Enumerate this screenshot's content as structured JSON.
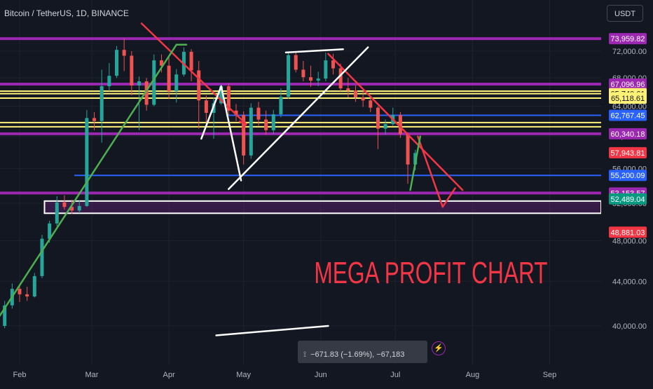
{
  "header": {
    "symbol_title": "Bitcoin / TetherUS, 1D, BINANCE",
    "currency": "USDT"
  },
  "annotation_text": "MEGA PROFIT CHART",
  "measure_tooltip": "−671.83 (−1.69%), −67,183",
  "colors": {
    "background": "#131722",
    "up_candle": "#26a69a",
    "down_candle": "#ef5350",
    "purple_level": "#9c27b0",
    "yellow_level": "#fff176",
    "blue_level": "#2962ff",
    "trend_red": "#f23645",
    "trend_green": "#4caf50",
    "annotation_red": "#f23645"
  },
  "chart_data": {
    "type": "candlestick",
    "symbol": "Bitcoin / TetherUS",
    "interval": "1D",
    "exchange": "BINANCE",
    "y_axis": {
      "scale": "log",
      "range": [
        37800,
        77000
      ],
      "tick_values": [
        40000,
        44000,
        48000,
        52000,
        56000,
        60000,
        64000,
        68000,
        72000
      ],
      "tick_labels": [
        "40,000.00",
        "44,000.00",
        "48,000.00",
        "52,000.00",
        "56,000.00",
        "60,000.00",
        "64,000.00",
        "68,000.00",
        "72,000.00"
      ]
    },
    "x_axis": {
      "tick_labels": [
        {
          "label": "Feb",
          "date": "2024-02-01"
        },
        {
          "label": "Mar",
          "date": "2024-03-01"
        },
        {
          "label": "Apr",
          "date": "2024-04-01"
        },
        {
          "label": "May",
          "date": "2024-05-01"
        },
        {
          "label": "Jun",
          "date": "2024-06-01"
        },
        {
          "label": "Jul",
          "date": "2024-07-01"
        },
        {
          "label": "Aug",
          "date": "2024-08-01"
        },
        {
          "label": "Sep",
          "date": "2024-09-01"
        }
      ]
    },
    "price_labels": [
      {
        "price": 73959.82,
        "label": "73,959.82",
        "color": "#9c27b0"
      },
      {
        "price": 67096.96,
        "label": "67,096.96",
        "color": "#9c27b0"
      },
      {
        "price": 65740.61,
        "label": "65,740.61",
        "color": "#fff176"
      },
      {
        "price": 65118.61,
        "label": "65,118.61",
        "color": "#fff176"
      },
      {
        "price": 62767.45,
        "label": "62,767.45",
        "color": "#2962ff"
      },
      {
        "price": 60340.18,
        "label": "60,340.18",
        "color": "#9c27b0"
      },
      {
        "price": 57943.81,
        "label": "57,943.81",
        "color": "#f23645"
      },
      {
        "price": 55200.09,
        "label": "55,200.09",
        "color": "#2962ff"
      },
      {
        "price": 53153.57,
        "label": "53,153.57",
        "color": "#9c27b0"
      },
      {
        "price": 52489.04,
        "label": "52,489.04",
        "color": "#089981"
      },
      {
        "price": 48881.03,
        "label": "48,881.03",
        "color": "#f23645"
      }
    ],
    "horizontal_levels": [
      {
        "price": 73959.82,
        "color": "#9c27b0",
        "x_start": "2024-01-15"
      },
      {
        "price": 67096.96,
        "color": "#9c27b0",
        "x_start": "2024-01-15"
      },
      {
        "price": 66100,
        "color": "#fff176",
        "x_start": "2024-01-15"
      },
      {
        "price": 65740.61,
        "color": "#fff176",
        "x_start": "2024-01-15"
      },
      {
        "price": 65118.61,
        "color": "#fff176",
        "x_start": "2024-01-15"
      },
      {
        "price": 62767.45,
        "color": "#2962ff",
        "x_start": "2024-04-24"
      },
      {
        "price": 61800,
        "color": "#fff176",
        "x_start": "2024-01-15"
      },
      {
        "price": 61250,
        "color": "#fff176",
        "x_start": "2024-01-15"
      },
      {
        "price": 60340.18,
        "color": "#9c27b0",
        "x_start": "2024-01-15"
      },
      {
        "price": 55200.09,
        "color": "#2962ff",
        "x_start": "2024-02-23"
      },
      {
        "price": 53153.57,
        "color": "#9c27b0",
        "x_start": "2024-01-15"
      }
    ],
    "support_zone": {
      "from_date": "2024-02-11",
      "low": 50900,
      "high": 52250
    },
    "candles": [
      {
        "d": "2024-01-20",
        "o": 41700,
        "h": 41900,
        "l": 38500,
        "c": 39600
      },
      {
        "d": "2024-01-23",
        "o": 39600,
        "h": 40600,
        "l": 38600,
        "c": 40000
      },
      {
        "d": "2024-01-26",
        "o": 40000,
        "h": 42200,
        "l": 39800,
        "c": 41800
      },
      {
        "d": "2024-01-29",
        "o": 41800,
        "h": 43800,
        "l": 41500,
        "c": 43300
      },
      {
        "d": "2024-02-01",
        "o": 43300,
        "h": 43600,
        "l": 42100,
        "c": 42800
      },
      {
        "d": "2024-02-04",
        "o": 42800,
        "h": 43500,
        "l": 42200,
        "c": 42600
      },
      {
        "d": "2024-02-07",
        "o": 42600,
        "h": 44800,
        "l": 42500,
        "c": 44500
      },
      {
        "d": "2024-02-10",
        "o": 44500,
        "h": 48600,
        "l": 44300,
        "c": 48200
      },
      {
        "d": "2024-02-13",
        "o": 48200,
        "h": 50100,
        "l": 47800,
        "c": 49800
      },
      {
        "d": "2024-02-16",
        "o": 49800,
        "h": 52800,
        "l": 49500,
        "c": 52100
      },
      {
        "d": "2024-02-19",
        "o": 52100,
        "h": 52900,
        "l": 51300,
        "c": 51600
      },
      {
        "d": "2024-02-22",
        "o": 51600,
        "h": 52400,
        "l": 50800,
        "c": 51200
      },
      {
        "d": "2024-02-25",
        "o": 51200,
        "h": 52300,
        "l": 50900,
        "c": 51700
      },
      {
        "d": "2024-02-28",
        "o": 51700,
        "h": 63500,
        "l": 51600,
        "c": 62400
      },
      {
        "d": "2024-03-02",
        "o": 62400,
        "h": 63200,
        "l": 60800,
        "c": 62000
      },
      {
        "d": "2024-03-05",
        "o": 62000,
        "h": 69200,
        "l": 59200,
        "c": 66800
      },
      {
        "d": "2024-03-08",
        "o": 66800,
        "h": 70200,
        "l": 66100,
        "c": 68300
      },
      {
        "d": "2024-03-11",
        "o": 68300,
        "h": 72800,
        "l": 68000,
        "c": 72200
      },
      {
        "d": "2024-03-14",
        "o": 72200,
        "h": 73959,
        "l": 69000,
        "c": 71300
      },
      {
        "d": "2024-03-17",
        "o": 71300,
        "h": 72000,
        "l": 65500,
        "c": 66900
      },
      {
        "d": "2024-03-20",
        "o": 66900,
        "h": 68200,
        "l": 60800,
        "c": 67500
      },
      {
        "d": "2024-03-23",
        "o": 67500,
        "h": 68000,
        "l": 63400,
        "c": 64200
      },
      {
        "d": "2024-03-26",
        "o": 64200,
        "h": 71500,
        "l": 64000,
        "c": 70600
      },
      {
        "d": "2024-03-29",
        "o": 70600,
        "h": 71500,
        "l": 68800,
        "c": 69800
      },
      {
        "d": "2024-04-01",
        "o": 69800,
        "h": 71300,
        "l": 65000,
        "c": 66100
      },
      {
        "d": "2024-04-04",
        "o": 66100,
        "h": 69300,
        "l": 64500,
        "c": 68500
      },
      {
        "d": "2024-04-07",
        "o": 68500,
        "h": 72600,
        "l": 68200,
        "c": 71900
      },
      {
        "d": "2024-04-10",
        "o": 71900,
        "h": 72300,
        "l": 67500,
        "c": 69100
      },
      {
        "d": "2024-04-13",
        "o": 69100,
        "h": 70500,
        "l": 61000,
        "c": 64800
      },
      {
        "d": "2024-04-16",
        "o": 64800,
        "h": 65500,
        "l": 61800,
        "c": 63100
      },
      {
        "d": "2024-04-19",
        "o": 63100,
        "h": 65200,
        "l": 59700,
        "c": 64400
      },
      {
        "d": "2024-04-22",
        "o": 64400,
        "h": 67100,
        "l": 64200,
        "c": 66800
      },
      {
        "d": "2024-04-25",
        "o": 66800,
        "h": 67200,
        "l": 62800,
        "c": 63400
      },
      {
        "d": "2024-04-28",
        "o": 63400,
        "h": 64300,
        "l": 62000,
        "c": 62800
      },
      {
        "d": "2024-05-01",
        "o": 62800,
        "h": 63300,
        "l": 56500,
        "c": 57600
      },
      {
        "d": "2024-05-04",
        "o": 57600,
        "h": 64400,
        "l": 57200,
        "c": 63800
      },
      {
        "d": "2024-05-07",
        "o": 63800,
        "h": 64600,
        "l": 61400,
        "c": 62200
      },
      {
        "d": "2024-05-10",
        "o": 62200,
        "h": 63400,
        "l": 60200,
        "c": 60800
      },
      {
        "d": "2024-05-13",
        "o": 60800,
        "h": 63500,
        "l": 60300,
        "c": 62900
      },
      {
        "d": "2024-05-16",
        "o": 62900,
        "h": 66500,
        "l": 62500,
        "c": 65300
      },
      {
        "d": "2024-05-19",
        "o": 65300,
        "h": 71900,
        "l": 65000,
        "c": 71400
      },
      {
        "d": "2024-05-22",
        "o": 71400,
        "h": 71900,
        "l": 68800,
        "c": 69200
      },
      {
        "d": "2024-05-25",
        "o": 69200,
        "h": 70500,
        "l": 67500,
        "c": 68100
      },
      {
        "d": "2024-05-28",
        "o": 68100,
        "h": 69800,
        "l": 66700,
        "c": 67600
      },
      {
        "d": "2024-05-31",
        "o": 67600,
        "h": 68900,
        "l": 66800,
        "c": 67900
      },
      {
        "d": "2024-06-03",
        "o": 67900,
        "h": 71800,
        "l": 67500,
        "c": 70600
      },
      {
        "d": "2024-06-06",
        "o": 70600,
        "h": 71600,
        "l": 68500,
        "c": 69400
      },
      {
        "d": "2024-06-09",
        "o": 69400,
        "h": 70100,
        "l": 66100,
        "c": 66500
      },
      {
        "d": "2024-06-12",
        "o": 66500,
        "h": 68000,
        "l": 65200,
        "c": 66200
      },
      {
        "d": "2024-06-15",
        "o": 66200,
        "h": 66900,
        "l": 64600,
        "c": 65200
      },
      {
        "d": "2024-06-18",
        "o": 65200,
        "h": 66100,
        "l": 63900,
        "c": 64800
      },
      {
        "d": "2024-06-21",
        "o": 64800,
        "h": 65100,
        "l": 63200,
        "c": 63800
      },
      {
        "d": "2024-06-24",
        "o": 63800,
        "h": 64000,
        "l": 58400,
        "c": 61000
      },
      {
        "d": "2024-06-27",
        "o": 61000,
        "h": 62200,
        "l": 60200,
        "c": 61600
      },
      {
        "d": "2024-06-30",
        "o": 61600,
        "h": 63800,
        "l": 61400,
        "c": 62800
      },
      {
        "d": "2024-07-03",
        "o": 62800,
        "h": 63200,
        "l": 59800,
        "c": 60300
      },
      {
        "d": "2024-07-06",
        "o": 60300,
        "h": 60500,
        "l": 54200,
        "c": 56500
      },
      {
        "d": "2024-07-09",
        "o": 56500,
        "h": 58300,
        "l": 55800,
        "c": 57900
      }
    ],
    "trendlines": [
      {
        "name": "red-descending-march",
        "color": "#f23645",
        "points": [
          [
            "2024-03-21",
            76400
          ],
          [
            "2024-05-02",
            61600
          ]
        ],
        "arrow": true
      },
      {
        "name": "red-descending-june",
        "color": "#f23645",
        "points": [
          [
            "2024-06-04",
            71600
          ],
          [
            "2024-07-28",
            53500
          ]
        ]
      },
      {
        "name": "red-projection",
        "color": "#f23645",
        "points": [
          [
            "2024-07-10",
            60000
          ],
          [
            "2024-07-20",
            51600
          ],
          [
            "2024-07-25",
            53700
          ]
        ]
      },
      {
        "name": "green-ascending",
        "color": "#4caf50",
        "points": [
          [
            "2024-01-17",
            38600
          ],
          [
            "2024-04-04",
            73000
          ],
          [
            "2024-04-08",
            73000
          ]
        ]
      },
      {
        "name": "green-bounce",
        "color": "#4caf50",
        "points": [
          [
            "2024-07-07",
            53500
          ],
          [
            "2024-07-11",
            60000
          ]
        ]
      },
      {
        "name": "white-ascending",
        "color": "#ffffff",
        "points": [
          [
            "2024-04-25",
            53600
          ],
          [
            "2024-06-20",
            72600
          ]
        ]
      },
      {
        "name": "white-top",
        "color": "#ffffff",
        "points": [
          [
            "2024-05-18",
            71800
          ],
          [
            "2024-06-10",
            72300
          ]
        ]
      },
      {
        "name": "white-bottom",
        "color": "#ffffff",
        "points": [
          [
            "2024-04-20",
            39200
          ],
          [
            "2024-06-04",
            40000
          ]
        ]
      },
      {
        "name": "white-wedge",
        "color": "#ffffff",
        "points": [
          [
            "2024-04-14",
            59700
          ],
          [
            "2024-04-22",
            66800
          ],
          [
            "2024-04-30",
            54600
          ]
        ]
      }
    ]
  }
}
